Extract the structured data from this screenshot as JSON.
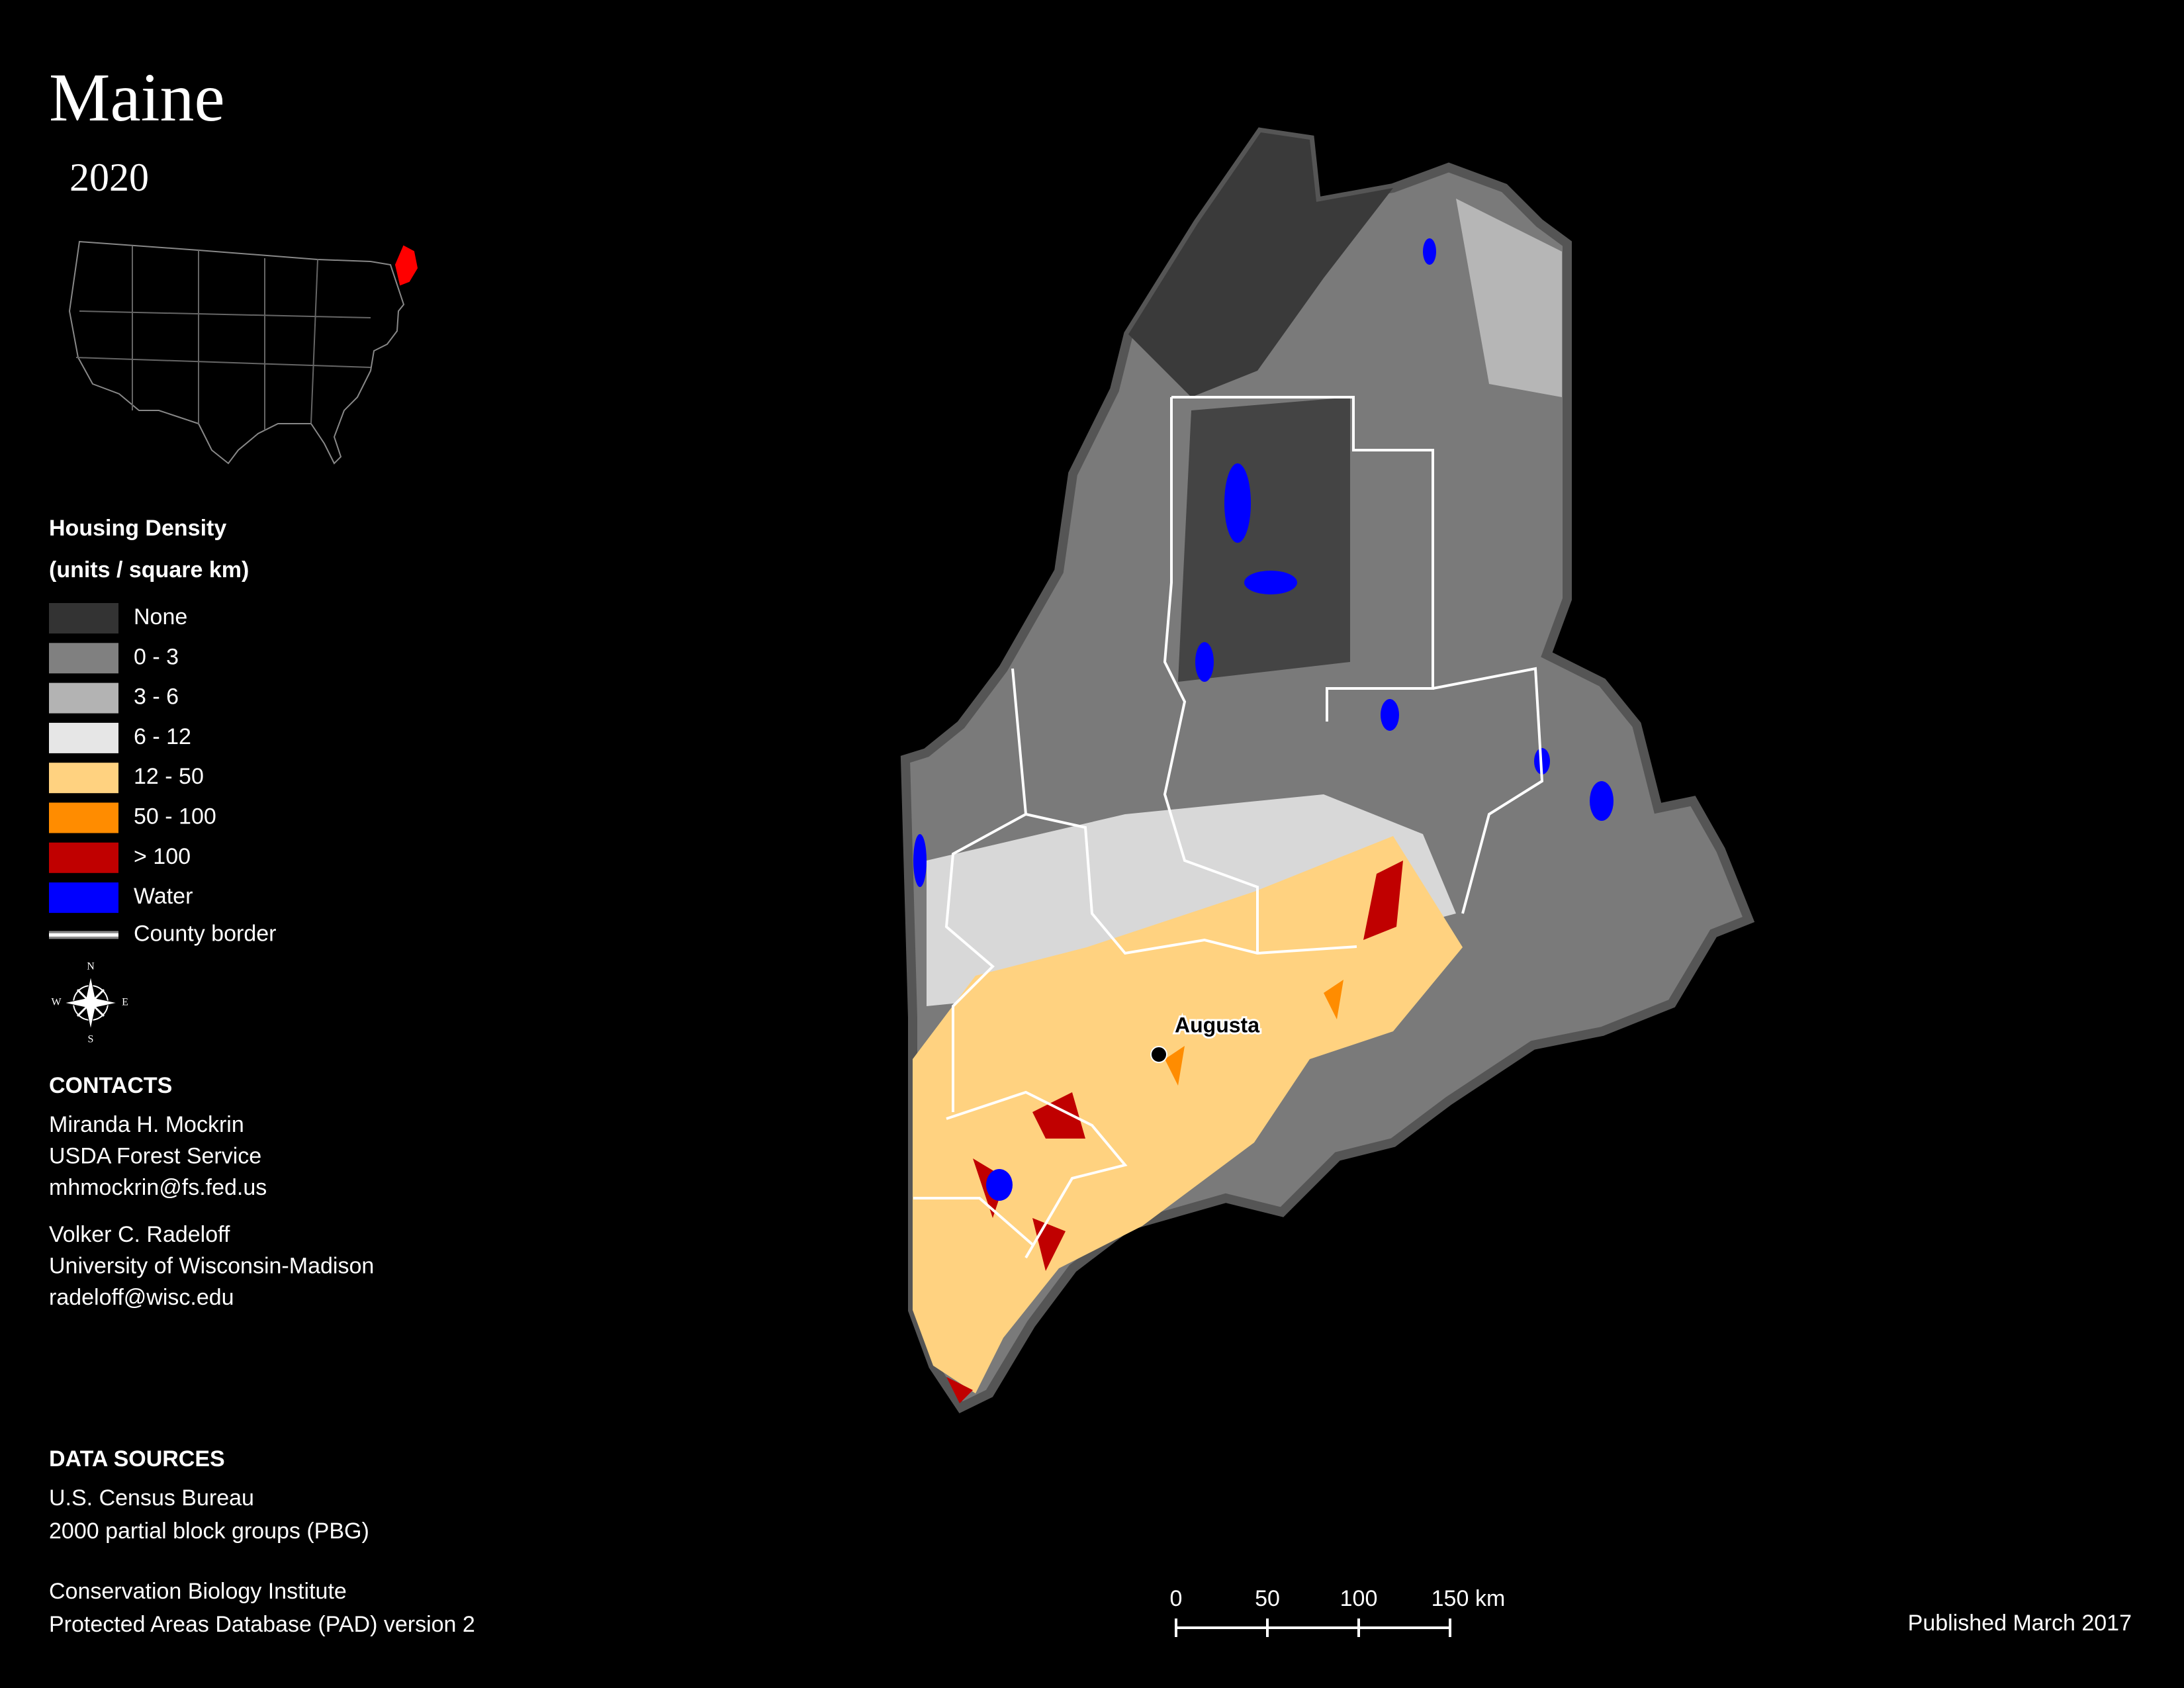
{
  "title": "Maine",
  "subtitle": "2020",
  "legend": {
    "title": [
      "Housing Density",
      "(units / square km)"
    ],
    "items": [
      {
        "label": "None",
        "color": "#333333"
      },
      {
        "label": "0 - 3",
        "color": "#808080"
      },
      {
        "label": "3 - 6",
        "color": "#b3b3b3"
      },
      {
        "label": "6 - 12",
        "color": "#e6e6e6"
      },
      {
        "label": "12 - 50",
        "color": "#ffd280"
      },
      {
        "label": "50 - 100",
        "color": "#ff8c00"
      },
      {
        "label": "> 100",
        "color": "#c00000"
      },
      {
        "label": "Water",
        "color": "#0000ff"
      }
    ],
    "border": {
      "label": "County border",
      "color": "#ffffff"
    }
  },
  "compass": [
    "N",
    "E",
    "S",
    "W"
  ],
  "city": "Augusta",
  "contacts": {
    "heading": "CONTACTS",
    "people": [
      [
        "Miranda H. Mockrin",
        "USDA Forest Service",
        "mhmockrin@fs.fed.us"
      ],
      [
        "Volker C. Radeloff",
        "University of Wisconsin-Madison",
        "radeloff@wisc.edu"
      ]
    ]
  },
  "data_sources": {
    "heading": "DATA SOURCES",
    "groups": [
      [
        "U.S. Census Bureau",
        "2000 partial block groups (PBG)"
      ],
      [
        "Conservation Biology Institute",
        "Protected Areas Database (PAD) version 2"
      ]
    ]
  },
  "scale_bar": {
    "ticks": [
      0,
      50,
      100,
      150
    ],
    "unit": "km"
  },
  "published": "Published March 2017"
}
